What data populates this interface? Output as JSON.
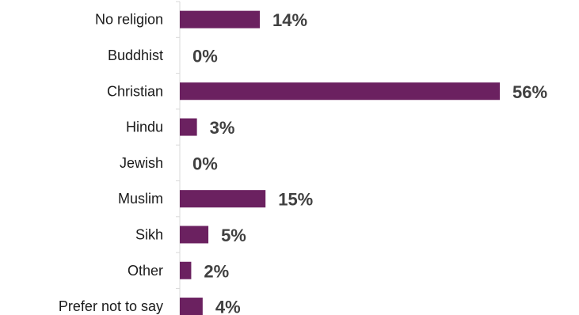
{
  "chart_data": {
    "type": "bar",
    "orientation": "horizontal",
    "categories": [
      "No religion",
      "Buddhist",
      "Christian",
      "Hindu",
      "Jewish",
      "Muslim",
      "Sikh",
      "Other",
      "Prefer not to say"
    ],
    "values": [
      14,
      0,
      56,
      3,
      0,
      15,
      5,
      2,
      4
    ],
    "value_labels": [
      "14%",
      "0%",
      "56%",
      "3%",
      "0%",
      "15%",
      "5%",
      "2%",
      "4%"
    ],
    "xlim": [
      0,
      56
    ],
    "bar_color": "#6b2160",
    "grid": false,
    "legend": "none"
  }
}
